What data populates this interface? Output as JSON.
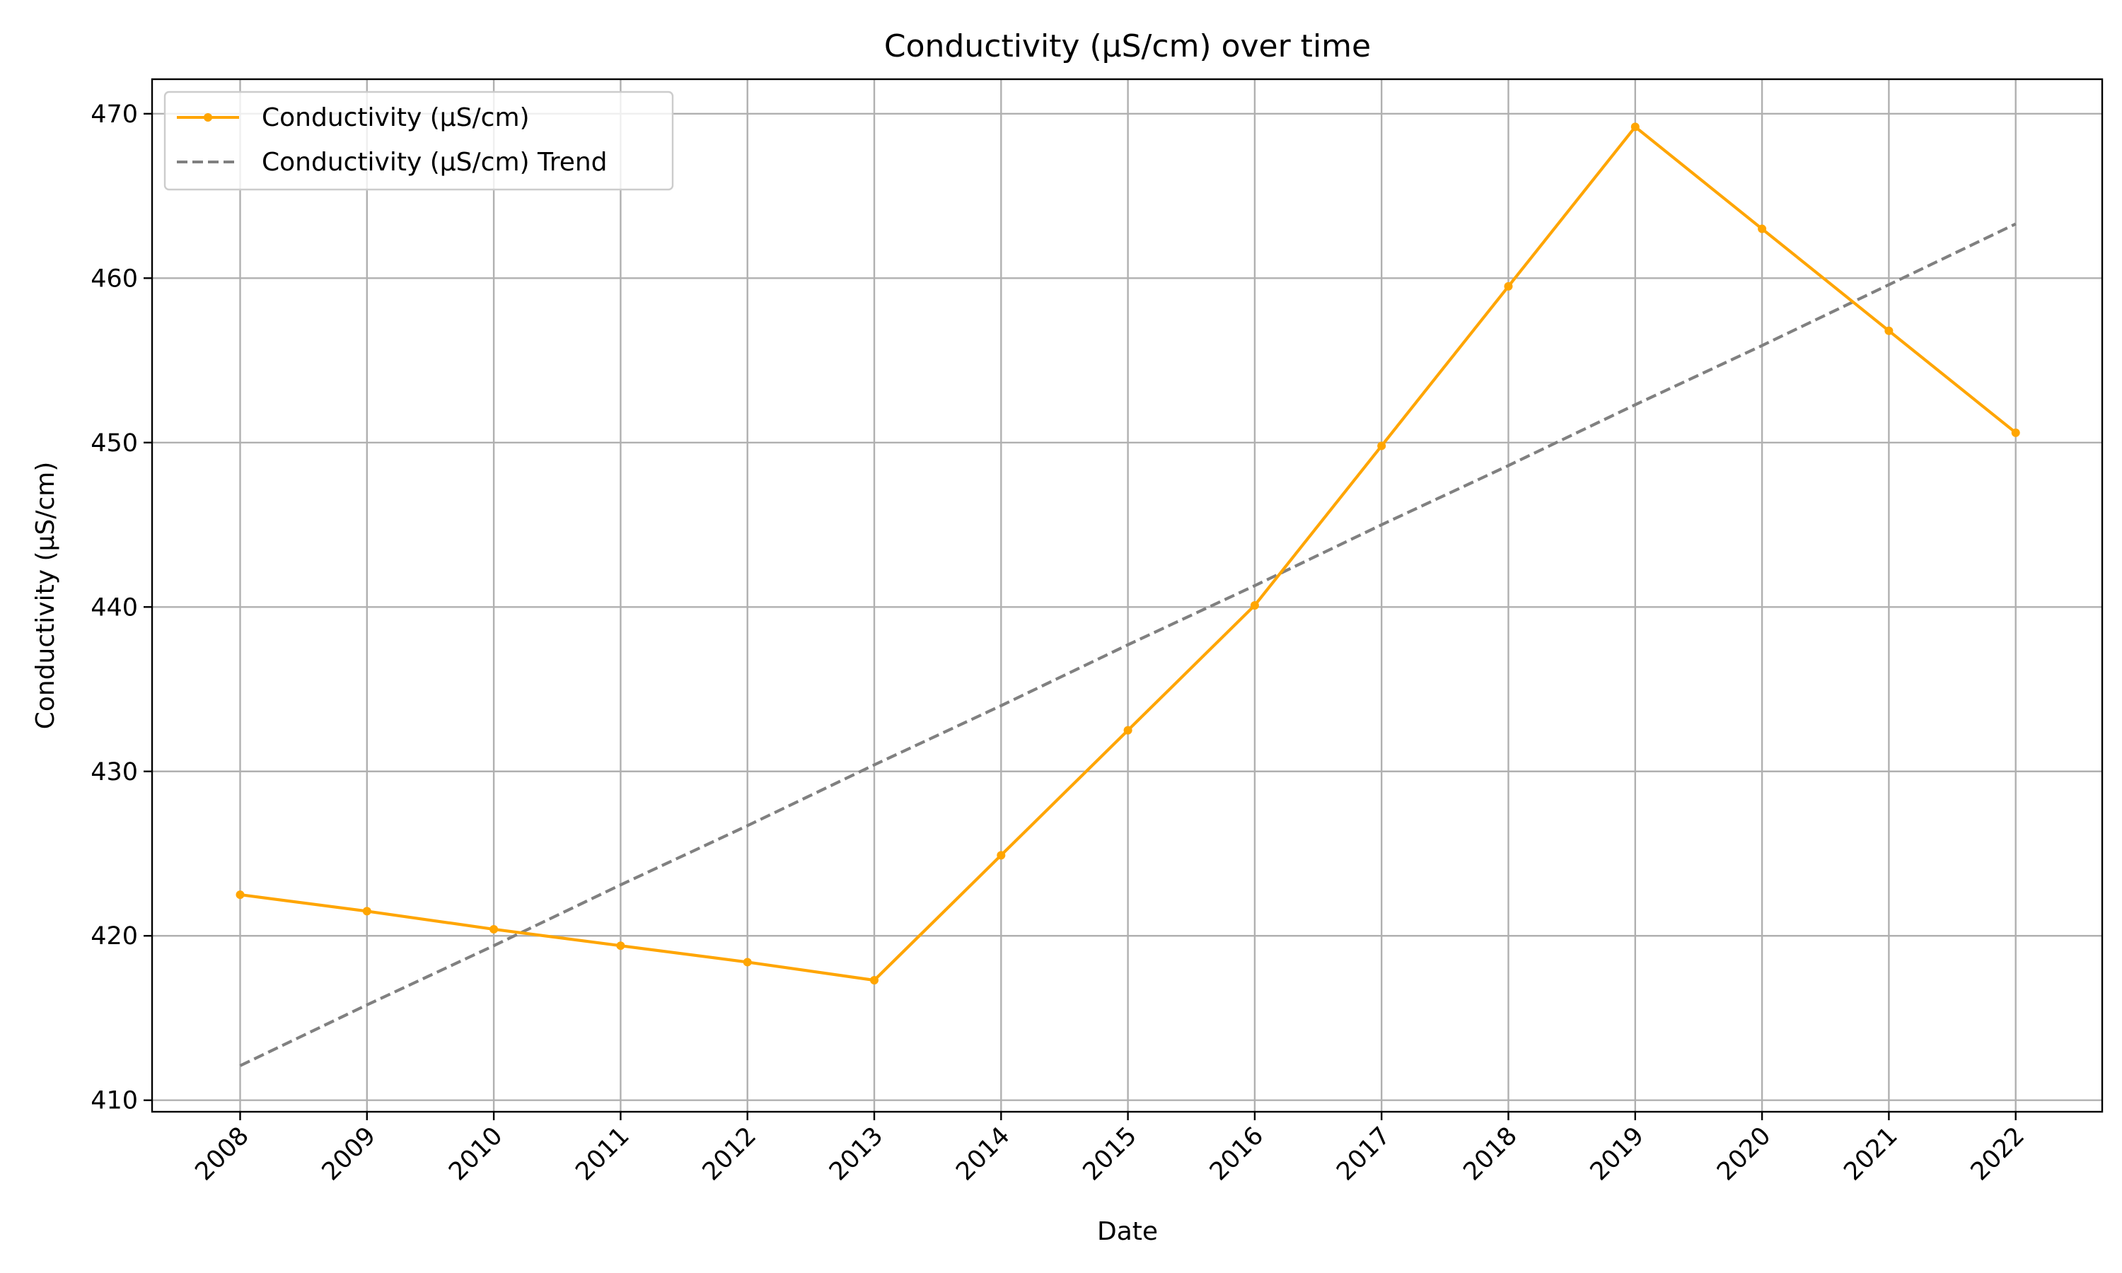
{
  "chart_data": {
    "type": "line",
    "title": "Conductivity (µS/cm) over time",
    "xlabel": "Date",
    "ylabel": "Conductivity (µS/cm)",
    "x": [
      "2008",
      "2009",
      "2010",
      "2011",
      "2012",
      "2013",
      "2014",
      "2015",
      "2016",
      "2017",
      "2018",
      "2019",
      "2020",
      "2021",
      "2022"
    ],
    "ylim": [
      409.3,
      472.1
    ],
    "yticks": [
      410,
      420,
      430,
      440,
      450,
      460,
      470
    ],
    "grid": true,
    "legend_position": "top-left",
    "series": [
      {
        "name": "Conductivity (µS/cm)",
        "color": "#ffa500",
        "style": "solid",
        "marker": "circle",
        "values": [
          422.5,
          421.5,
          420.4,
          419.4,
          418.4,
          417.3,
          424.9,
          432.5,
          440.1,
          449.8,
          459.5,
          469.2,
          463.0,
          456.8,
          450.6
        ]
      },
      {
        "name": "Conductivity (µS/cm) Trend",
        "color": "#808080",
        "style": "dashed",
        "marker": "none",
        "values": [
          412.1,
          415.8,
          419.4,
          423.1,
          426.7,
          430.4,
          434.0,
          437.7,
          441.3,
          445.0,
          448.6,
          452.3,
          455.9,
          459.6,
          463.3
        ]
      }
    ]
  }
}
